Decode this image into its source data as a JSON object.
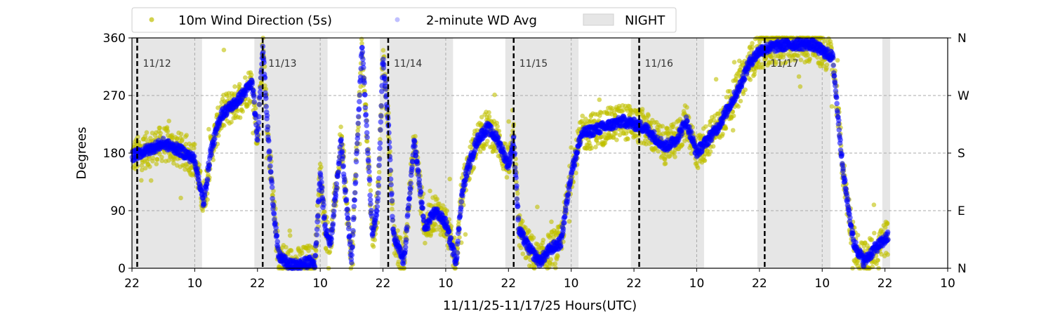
{
  "chart_data": {
    "type": "scatter",
    "title": "",
    "xlabel": "11/11/25-11/17/25  Hours(UTC)",
    "ylabel": "Degrees",
    "x_unit": "hours since 11/11 22:00 UTC",
    "xlim": [
      0,
      156
    ],
    "ylim": [
      0,
      360
    ],
    "x_ticks": [
      0,
      12,
      24,
      36,
      48,
      60,
      72,
      84,
      96,
      108,
      120,
      132,
      144,
      156
    ],
    "x_tick_labels": [
      "22",
      "10",
      "22",
      "10",
      "22",
      "10",
      "22",
      "10",
      "22",
      "10",
      "22",
      "10",
      "22",
      "10"
    ],
    "y_ticks": [
      0,
      90,
      180,
      270,
      360
    ],
    "y_tick_labels": [
      "0",
      "90",
      "180",
      "270",
      "360"
    ],
    "y2_tick_labels": [
      "N",
      "E",
      "S",
      "W",
      "N"
    ],
    "grid": "dashed horizontal at 90/180/270, dashed vertical at 10 UTC",
    "legend": {
      "placement": "top-center-outside",
      "entries": [
        "10m Wind Direction (5s)",
        "2-minute WD Avg",
        "NIGHT"
      ]
    },
    "night_periods": [
      [
        -0.6,
        13.4
      ],
      [
        23.4,
        37.4
      ],
      [
        47.4,
        61.4
      ],
      [
        71.4,
        85.4
      ],
      [
        95.4,
        109.4
      ],
      [
        119.6,
        133.6
      ],
      [
        143.5,
        145
      ]
    ],
    "date_markers": [
      {
        "hour": 1,
        "label": "11/12"
      },
      {
        "hour": 25,
        "label": "11/13"
      },
      {
        "hour": 49,
        "label": "11/14"
      },
      {
        "hour": 73,
        "label": "11/15"
      },
      {
        "hour": 97,
        "label": "11/16"
      },
      {
        "hour": 121,
        "label": "11/17"
      }
    ],
    "series": [
      {
        "name": "10m Wind Direction (5s)",
        "color": "#bfbf00",
        "spread": 28
      },
      {
        "name": "2-minute WD Avg",
        "color": "#0000ff",
        "spread": 8
      }
    ],
    "trend": {
      "hours": [
        0,
        3,
        6,
        9,
        12,
        13.7,
        15,
        17,
        20,
        23,
        24,
        25,
        26,
        27,
        28,
        30,
        32,
        34,
        35,
        36,
        37,
        38,
        40,
        42,
        44,
        46,
        47,
        48,
        49,
        50,
        52,
        54,
        56,
        58,
        60,
        62,
        63,
        64,
        66,
        68,
        70,
        72,
        73,
        74,
        76,
        78,
        80,
        82,
        84,
        86,
        90,
        94,
        98,
        102,
        104,
        106,
        108,
        110,
        112,
        114,
        116,
        118,
        120,
        122,
        126,
        130,
        134,
        136,
        138,
        140,
        142,
        146,
        148,
        150,
        153,
        144.6
      ],
      "values": [
        175,
        185,
        195,
        185,
        170,
        100,
        180,
        240,
        260,
        290,
        200,
        350,
        210,
        100,
        20,
        5,
        5,
        10,
        8,
        150,
        60,
        40,
        200,
        10,
        350,
        50,
        100,
        330,
        230,
        50,
        10,
        200,
        60,
        90,
        70,
        10,
        110,
        150,
        200,
        220,
        200,
        160,
        200,
        60,
        30,
        10,
        30,
        40,
        150,
        210,
        220,
        230,
        220,
        190,
        200,
        230,
        180,
        200,
        220,
        250,
        280,
        320,
        340,
        345,
        350,
        350,
        330,
        150,
        40,
        10,
        30,
        60,
        60,
        20,
        10,
        10
      ]
    }
  }
}
